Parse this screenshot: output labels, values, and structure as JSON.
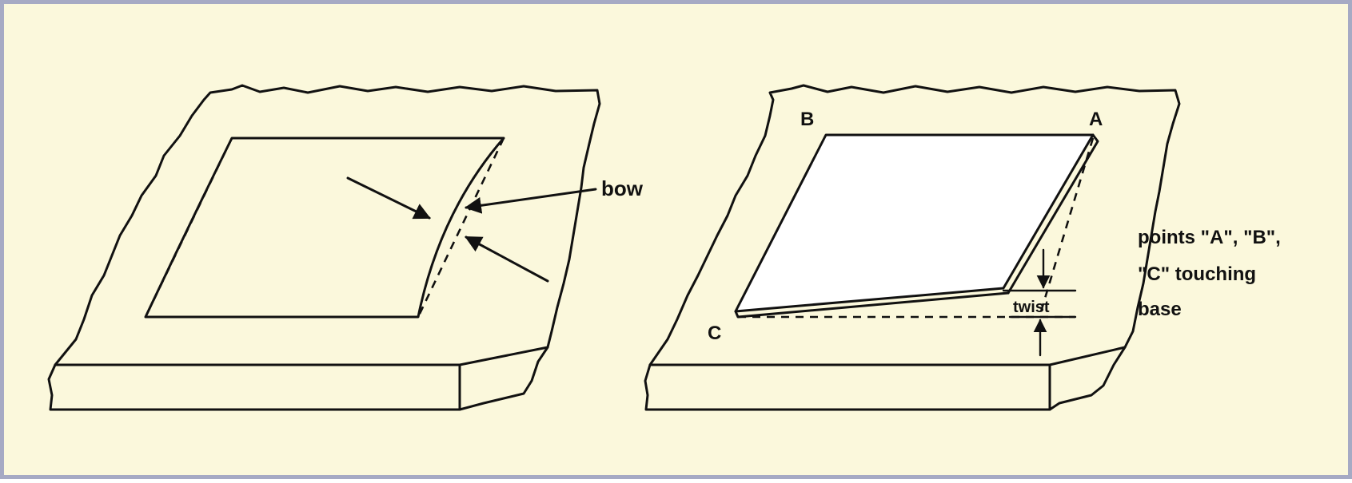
{
  "left_panel": {
    "label_bow": "bow"
  },
  "right_panel": {
    "label_a": "A",
    "label_b": "B",
    "label_c": "C",
    "label_twist": "twist",
    "note_line1": "points \"A\", \"B\",",
    "note_line2": "\"C\" touching",
    "note_line3": "base"
  },
  "colors": {
    "background": "#fbf8dc",
    "border": "#a6aac4",
    "ink": "#111111",
    "sheet": "#ffffff"
  }
}
